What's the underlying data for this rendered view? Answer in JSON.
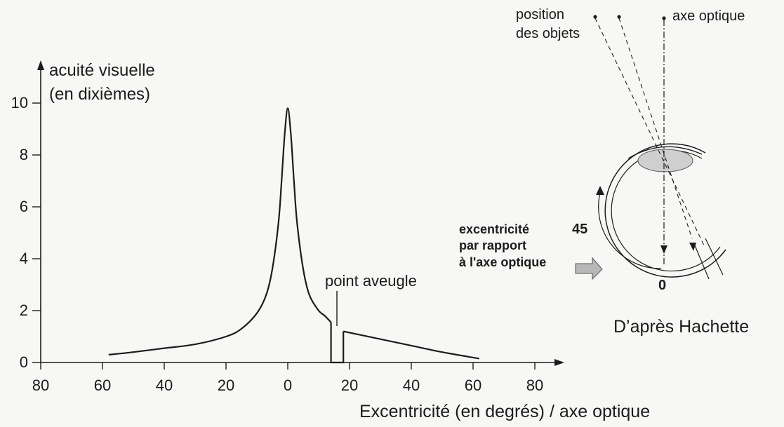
{
  "chart_data": {
    "type": "line",
    "ylabel_line1": "acuité visuelle",
    "ylabel_line2": "(en dixièmes)",
    "xlabel": "Excentricité (en degrés) / axe optique",
    "x_tick_labels": [
      "80",
      "60",
      "40",
      "20",
      "0",
      "20",
      "40",
      "60",
      "80"
    ],
    "x_ticks": [
      -80,
      -60,
      -40,
      -20,
      0,
      20,
      40,
      60,
      80
    ],
    "y_ticks": [
      0,
      2,
      4,
      6,
      8,
      10
    ],
    "xlim": [
      -80,
      80
    ],
    "ylim": [
      0,
      10
    ],
    "grid": false,
    "annotation": "point aveugle",
    "blind_spot_range": [
      14,
      18
    ],
    "series": [
      {
        "x": [
          -58,
          -50,
          -40,
          -30,
          -20,
          -15,
          -10,
          -7,
          -5,
          -3,
          -2,
          -1,
          0,
          1,
          2,
          3,
          5,
          7,
          10,
          12,
          14
        ],
        "y": [
          0.3,
          0.4,
          0.55,
          0.7,
          1.0,
          1.3,
          1.9,
          2.6,
          3.6,
          5.4,
          7.0,
          8.8,
          9.8,
          8.8,
          7.0,
          5.4,
          3.6,
          2.6,
          2.0,
          1.8,
          1.55
        ]
      },
      {
        "x": [
          18,
          20,
          30,
          40,
          50,
          62
        ],
        "y": [
          1.2,
          1.15,
          0.9,
          0.65,
          0.4,
          0.15
        ]
      }
    ]
  },
  "diagram": {
    "label_position": "position",
    "label_objects": "des objets",
    "label_axis": "axe optique",
    "label_45": "45",
    "label_0": "0",
    "excentricite_line1": "excentricité",
    "excentricite_line2": "par rapport",
    "excentricite_line3": "à l'axe optique",
    "credit": "D’après Hachette"
  }
}
